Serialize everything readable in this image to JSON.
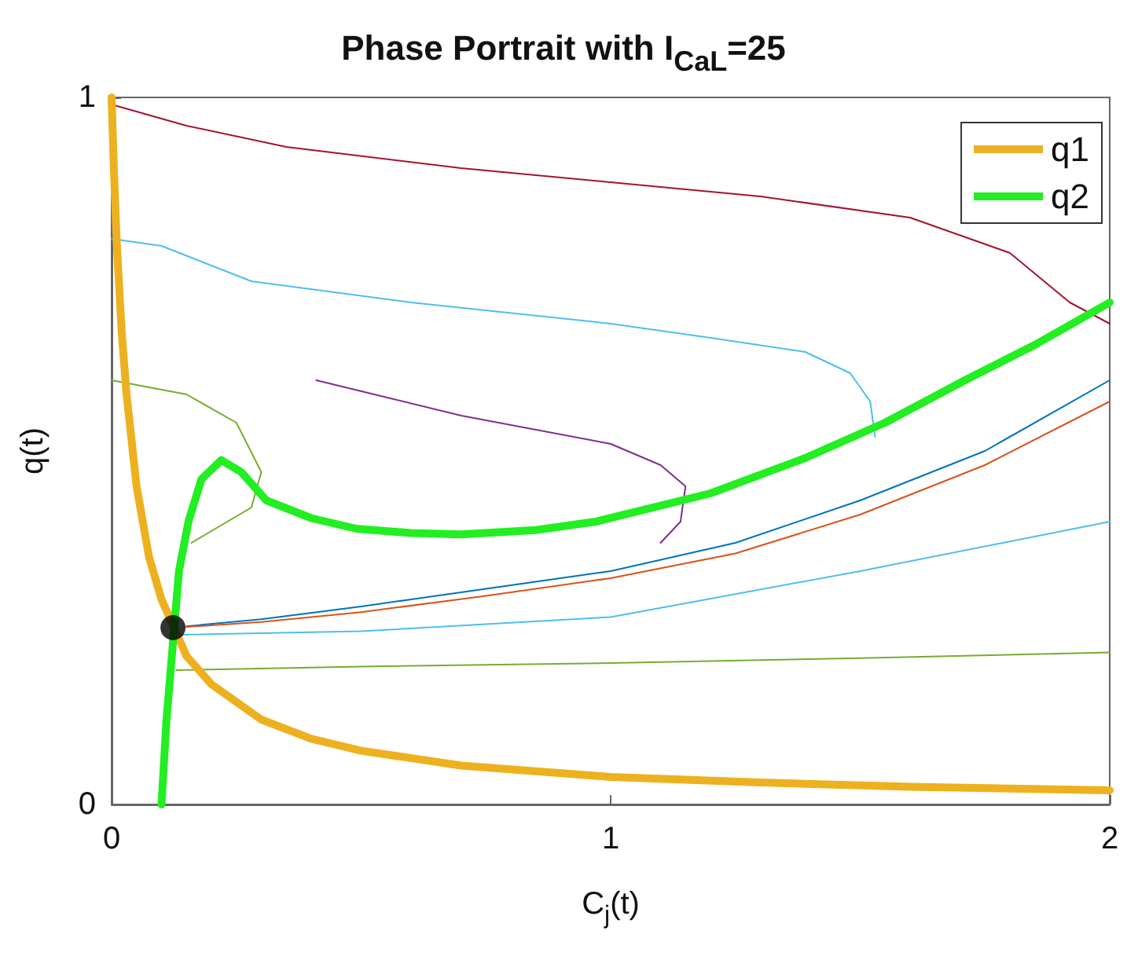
{
  "chart_data": {
    "type": "line",
    "title": "Phase Portrait with I$_{CaL}$=25",
    "xlabel": "C$_{j}$(t)",
    "ylabel": "q(t)",
    "xlim": [
      0,
      2
    ],
    "ylim": [
      0,
      1
    ],
    "xticks": [
      0,
      1,
      2
    ],
    "yticks": [
      0,
      1
    ],
    "legend": "top right",
    "marker": "none",
    "series": [
      {
        "color": "#a2142f",
        "x": [
          0,
          0.15,
          0.35,
          0.7,
          1.0,
          1.3,
          1.6,
          1.8,
          1.92,
          2.0
        ],
        "values": [
          0.99,
          0.96,
          0.93,
          0.9,
          0.88,
          0.86,
          0.83,
          0.78,
          0.71,
          0.68
        ]
      },
      {
        "color": "#4dbeee",
        "x": [
          0,
          0.1,
          0.28,
          0.6,
          1.0,
          1.2,
          1.39,
          1.48,
          1.52,
          1.53
        ],
        "values": [
          0.8,
          0.79,
          0.74,
          0.71,
          0.68,
          0.66,
          0.64,
          0.61,
          0.57,
          0.52
        ]
      },
      {
        "color": "#7e2f8e",
        "x": [
          0.41,
          0.7,
          1.0,
          1.1,
          1.15,
          1.14,
          1.1
        ],
        "values": [
          0.6,
          0.55,
          0.51,
          0.48,
          0.45,
          0.4,
          0.37
        ]
      },
      {
        "color": "#77ac30",
        "x": [
          0,
          0.15,
          0.25,
          0.3,
          0.28,
          0.16
        ],
        "values": [
          0.6,
          0.58,
          0.54,
          0.47,
          0.42,
          0.37
        ]
      },
      {
        "color": "#0072bd",
        "x": [
          0.15,
          0.3,
          0.5,
          0.75,
          1.0,
          1.25,
          1.5,
          1.75,
          2.0
        ],
        "values": [
          0.252,
          0.262,
          0.28,
          0.305,
          0.33,
          0.37,
          0.43,
          0.5,
          0.6
        ]
      },
      {
        "color": "#d95319",
        "x": [
          0.15,
          0.3,
          0.5,
          0.75,
          1.0,
          1.25,
          1.5,
          1.75,
          2.0
        ],
        "values": [
          0.251,
          0.258,
          0.272,
          0.295,
          0.32,
          0.355,
          0.41,
          0.48,
          0.57
        ]
      },
      {
        "color": "#4dbeee",
        "x": [
          0.14,
          0.5,
          1.0,
          1.5,
          2.0
        ],
        "values": [
          0.24,
          0.245,
          0.265,
          0.33,
          0.4
        ]
      },
      {
        "color": "#77ac30",
        "x": [
          0.13,
          0.5,
          1.0,
          1.5,
          2.0
        ],
        "values": [
          0.19,
          0.195,
          0.2,
          0.207,
          0.215
        ]
      },
      {
        "name": "q1",
        "color": "#edb120",
        "x": [
          0,
          0.005,
          0.01,
          0.02,
          0.03,
          0.05,
          0.075,
          0.1,
          0.15,
          0.2,
          0.3,
          0.4,
          0.5,
          0.7,
          1.0,
          1.3,
          1.6,
          2.0
        ],
        "values": [
          1,
          0.89,
          0.8,
          0.67,
          0.58,
          0.45,
          0.35,
          0.29,
          0.21,
          0.17,
          0.12,
          0.093,
          0.076,
          0.055,
          0.039,
          0.031,
          0.025,
          0.02
        ]
      },
      {
        "name": "q2",
        "color": "#22ee22",
        "x": [
          0.1,
          0.11,
          0.135,
          0.154,
          0.18,
          0.22,
          0.26,
          0.31,
          0.4,
          0.49,
          0.6,
          0.7,
          0.85,
          0.97,
          1.2,
          1.39,
          1.55,
          1.71,
          1.85,
          2.0
        ],
        "values": [
          0,
          0.12,
          0.33,
          0.4,
          0.46,
          0.487,
          0.47,
          0.43,
          0.405,
          0.39,
          0.384,
          0.382,
          0.388,
          0.4,
          0.44,
          0.49,
          0.54,
          0.6,
          0.65,
          0.71
        ]
      },
      {
        "type": "scatter",
        "marker": "circle",
        "color": "#000000",
        "x": [
          0.123
        ],
        "values": [
          0.25
        ]
      }
    ]
  }
}
